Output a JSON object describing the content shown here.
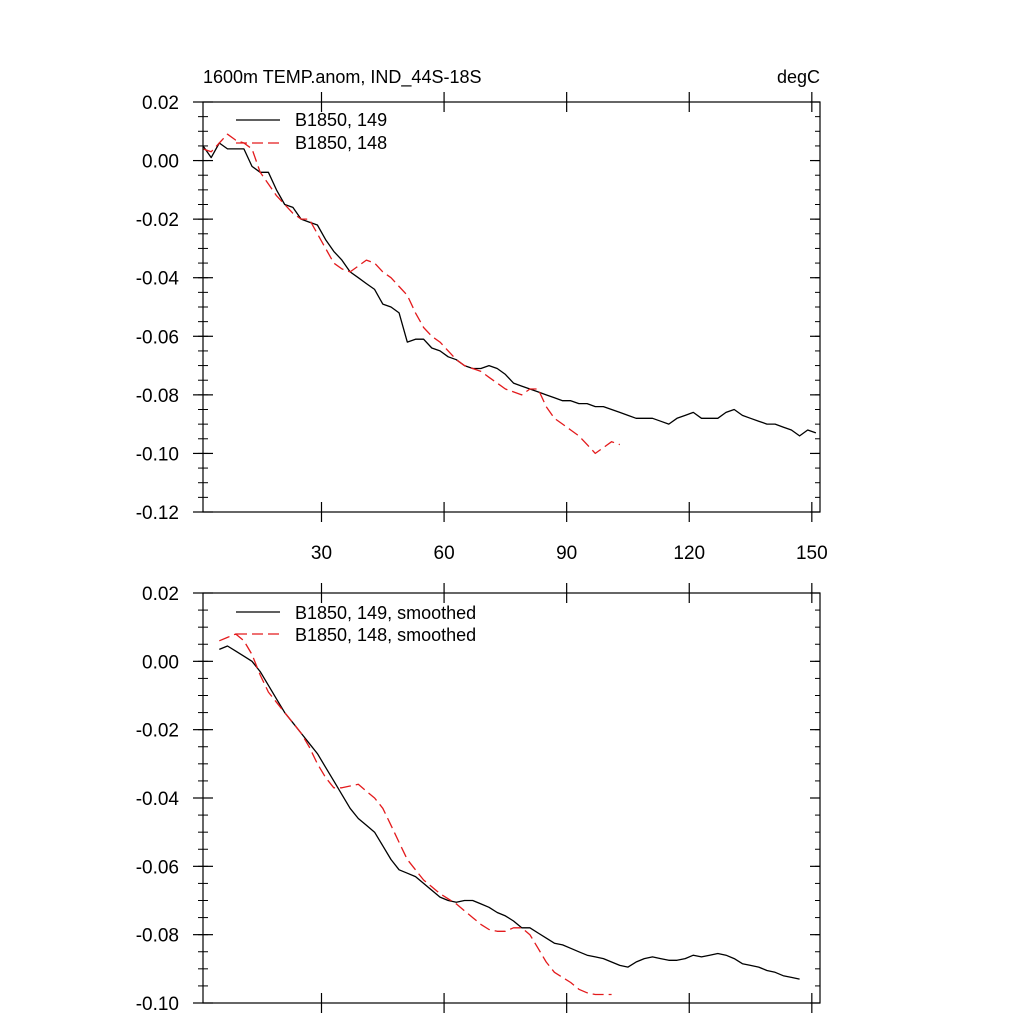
{
  "chart_data": [
    {
      "type": "line",
      "title": "1600m TEMP.anom, IND_44S-18S",
      "units_label": "degC",
      "xlabel": "",
      "ylabel": "",
      "xlim": [
        1,
        152
      ],
      "ylim": [
        -0.12,
        0.02
      ],
      "xticks": [
        30,
        60,
        90,
        120,
        150
      ],
      "xtick_labels": [
        "30",
        "60",
        "90",
        "120",
        "150"
      ],
      "yticks": [
        0.02,
        0.0,
        -0.02,
        -0.04,
        -0.06,
        -0.08,
        -0.1,
        -0.12
      ],
      "ytick_labels": [
        "0.02",
        "0.00",
        "-0.02",
        "-0.04",
        "-0.06",
        "-0.08",
        "-0.10",
        "-0.12"
      ],
      "legend_position": "top-left",
      "series": [
        {
          "name": "B1850, 149",
          "color": "#000000",
          "dash": "solid",
          "x": [
            1,
            3,
            5,
            7,
            9,
            11,
            13,
            15,
            17,
            19,
            21,
            23,
            25,
            27,
            29,
            31,
            33,
            35,
            37,
            39,
            41,
            43,
            45,
            47,
            49,
            51,
            53,
            55,
            57,
            59,
            61,
            63,
            65,
            67,
            69,
            71,
            73,
            75,
            77,
            79,
            81,
            83,
            85,
            87,
            89,
            91,
            93,
            95,
            97,
            99,
            101,
            103,
            105,
            107,
            109,
            111,
            113,
            115,
            117,
            119,
            121,
            123,
            125,
            127,
            129,
            131,
            133,
            135,
            137,
            139,
            141,
            143,
            145,
            147,
            149,
            151
          ],
          "values": [
            0.005,
            0.001,
            0.006,
            0.004,
            0.004,
            0.004,
            -0.002,
            -0.004,
            -0.004,
            -0.01,
            -0.015,
            -0.016,
            -0.02,
            -0.021,
            -0.022,
            -0.027,
            -0.031,
            -0.034,
            -0.038,
            -0.04,
            -0.042,
            -0.044,
            -0.049,
            -0.05,
            -0.052,
            -0.062,
            -0.061,
            -0.061,
            -0.064,
            -0.065,
            -0.067,
            -0.068,
            -0.07,
            -0.071,
            -0.071,
            -0.07,
            -0.071,
            -0.073,
            -0.076,
            -0.077,
            -0.078,
            -0.079,
            -0.08,
            -0.081,
            -0.082,
            -0.082,
            -0.083,
            -0.083,
            -0.084,
            -0.084,
            -0.085,
            -0.086,
            -0.087,
            -0.088,
            -0.088,
            -0.088,
            -0.089,
            -0.09,
            -0.088,
            -0.087,
            -0.086,
            -0.088,
            -0.088,
            -0.088,
            -0.086,
            -0.085,
            -0.087,
            -0.088,
            -0.089,
            -0.09,
            -0.09,
            -0.091,
            -0.092,
            -0.094,
            -0.092,
            -0.093
          ]
        },
        {
          "name": "B1850, 148",
          "color": "#e31a1c",
          "dash": "dashed",
          "x": [
            1,
            3,
            5,
            7,
            9,
            11,
            13,
            15,
            17,
            19,
            21,
            23,
            25,
            27,
            29,
            31,
            33,
            35,
            37,
            39,
            41,
            43,
            45,
            47,
            49,
            51,
            53,
            55,
            57,
            59,
            61,
            63,
            65,
            67,
            69,
            71,
            73,
            75,
            77,
            79,
            81,
            83,
            85,
            87,
            89,
            91,
            93,
            95,
            97,
            99,
            101,
            103
          ],
          "values": [
            0.004,
            0.003,
            0.006,
            0.009,
            0.007,
            0.006,
            0.004,
            -0.004,
            -0.008,
            -0.012,
            -0.015,
            -0.018,
            -0.02,
            -0.02,
            -0.025,
            -0.03,
            -0.035,
            -0.037,
            -0.038,
            -0.036,
            -0.034,
            -0.035,
            -0.038,
            -0.04,
            -0.043,
            -0.046,
            -0.052,
            -0.057,
            -0.06,
            -0.062,
            -0.065,
            -0.068,
            -0.07,
            -0.071,
            -0.072,
            -0.074,
            -0.076,
            -0.078,
            -0.079,
            -0.08,
            -0.078,
            -0.078,
            -0.084,
            -0.088,
            -0.09,
            -0.092,
            -0.094,
            -0.097,
            -0.1,
            -0.098,
            -0.096,
            -0.097
          ]
        }
      ]
    },
    {
      "type": "line",
      "title": "",
      "xlabel": "",
      "ylabel": "",
      "xlim": [
        1,
        152
      ],
      "ylim": [
        -0.1,
        0.02
      ],
      "xticks": [
        30,
        60,
        90,
        120,
        150
      ],
      "yticks": [
        0.02,
        0.0,
        -0.02,
        -0.04,
        -0.06,
        -0.08,
        -0.1
      ],
      "ytick_labels": [
        "0.02",
        "0.00",
        "-0.02",
        "-0.04",
        "-0.06",
        "-0.08",
        "-0.10"
      ],
      "legend_position": "top-left",
      "series": [
        {
          "name": "B1850, 149, smoothed",
          "color": "#000000",
          "dash": "solid",
          "x": [
            5,
            7,
            9,
            11,
            13,
            15,
            17,
            19,
            21,
            23,
            25,
            27,
            29,
            31,
            33,
            35,
            37,
            39,
            41,
            43,
            45,
            47,
            49,
            51,
            53,
            55,
            57,
            59,
            61,
            63,
            65,
            67,
            69,
            71,
            73,
            75,
            77,
            79,
            81,
            83,
            85,
            87,
            89,
            91,
            93,
            95,
            97,
            99,
            101,
            103,
            105,
            107,
            109,
            111,
            113,
            115,
            117,
            119,
            121,
            123,
            125,
            127,
            129,
            131,
            133,
            135,
            137,
            139,
            141,
            143,
            145,
            147
          ],
          "values": [
            0.0035,
            0.0045,
            0.003,
            0.0015,
            0.0,
            -0.003,
            -0.007,
            -0.011,
            -0.015,
            -0.018,
            -0.021,
            -0.024,
            -0.027,
            -0.031,
            -0.035,
            -0.039,
            -0.043,
            -0.046,
            -0.048,
            -0.05,
            -0.054,
            -0.058,
            -0.061,
            -0.062,
            -0.063,
            -0.065,
            -0.067,
            -0.069,
            -0.07,
            -0.0705,
            -0.07,
            -0.07,
            -0.071,
            -0.072,
            -0.0735,
            -0.0745,
            -0.076,
            -0.078,
            -0.078,
            -0.0795,
            -0.081,
            -0.0825,
            -0.083,
            -0.084,
            -0.085,
            -0.086,
            -0.0865,
            -0.087,
            -0.088,
            -0.089,
            -0.0895,
            -0.088,
            -0.087,
            -0.0865,
            -0.087,
            -0.0875,
            -0.0875,
            -0.087,
            -0.086,
            -0.0865,
            -0.086,
            -0.0855,
            -0.086,
            -0.087,
            -0.0885,
            -0.089,
            -0.0895,
            -0.0905,
            -0.091,
            -0.092,
            -0.0925,
            -0.093
          ]
        },
        {
          "name": "B1850, 148, smoothed",
          "color": "#e31a1c",
          "dash": "dashed",
          "x": [
            5,
            7,
            9,
            11,
            13,
            15,
            17,
            19,
            21,
            23,
            25,
            27,
            29,
            31,
            33,
            35,
            37,
            39,
            41,
            43,
            45,
            47,
            49,
            51,
            53,
            55,
            57,
            59,
            61,
            63,
            65,
            67,
            69,
            71,
            73,
            75,
            77,
            79,
            81,
            83,
            85,
            87,
            89,
            91,
            93,
            95,
            97,
            99,
            101
          ],
          "values": [
            0.006,
            0.007,
            0.008,
            0.006,
            0.002,
            -0.004,
            -0.009,
            -0.012,
            -0.015,
            -0.018,
            -0.021,
            -0.025,
            -0.03,
            -0.034,
            -0.037,
            -0.037,
            -0.0365,
            -0.036,
            -0.038,
            -0.04,
            -0.043,
            -0.048,
            -0.053,
            -0.058,
            -0.061,
            -0.064,
            -0.066,
            -0.068,
            -0.0695,
            -0.071,
            -0.073,
            -0.075,
            -0.077,
            -0.0785,
            -0.079,
            -0.079,
            -0.078,
            -0.078,
            -0.08,
            -0.084,
            -0.088,
            -0.091,
            -0.0925,
            -0.094,
            -0.096,
            -0.097,
            -0.0975,
            -0.0975,
            -0.0975
          ]
        }
      ]
    }
  ]
}
